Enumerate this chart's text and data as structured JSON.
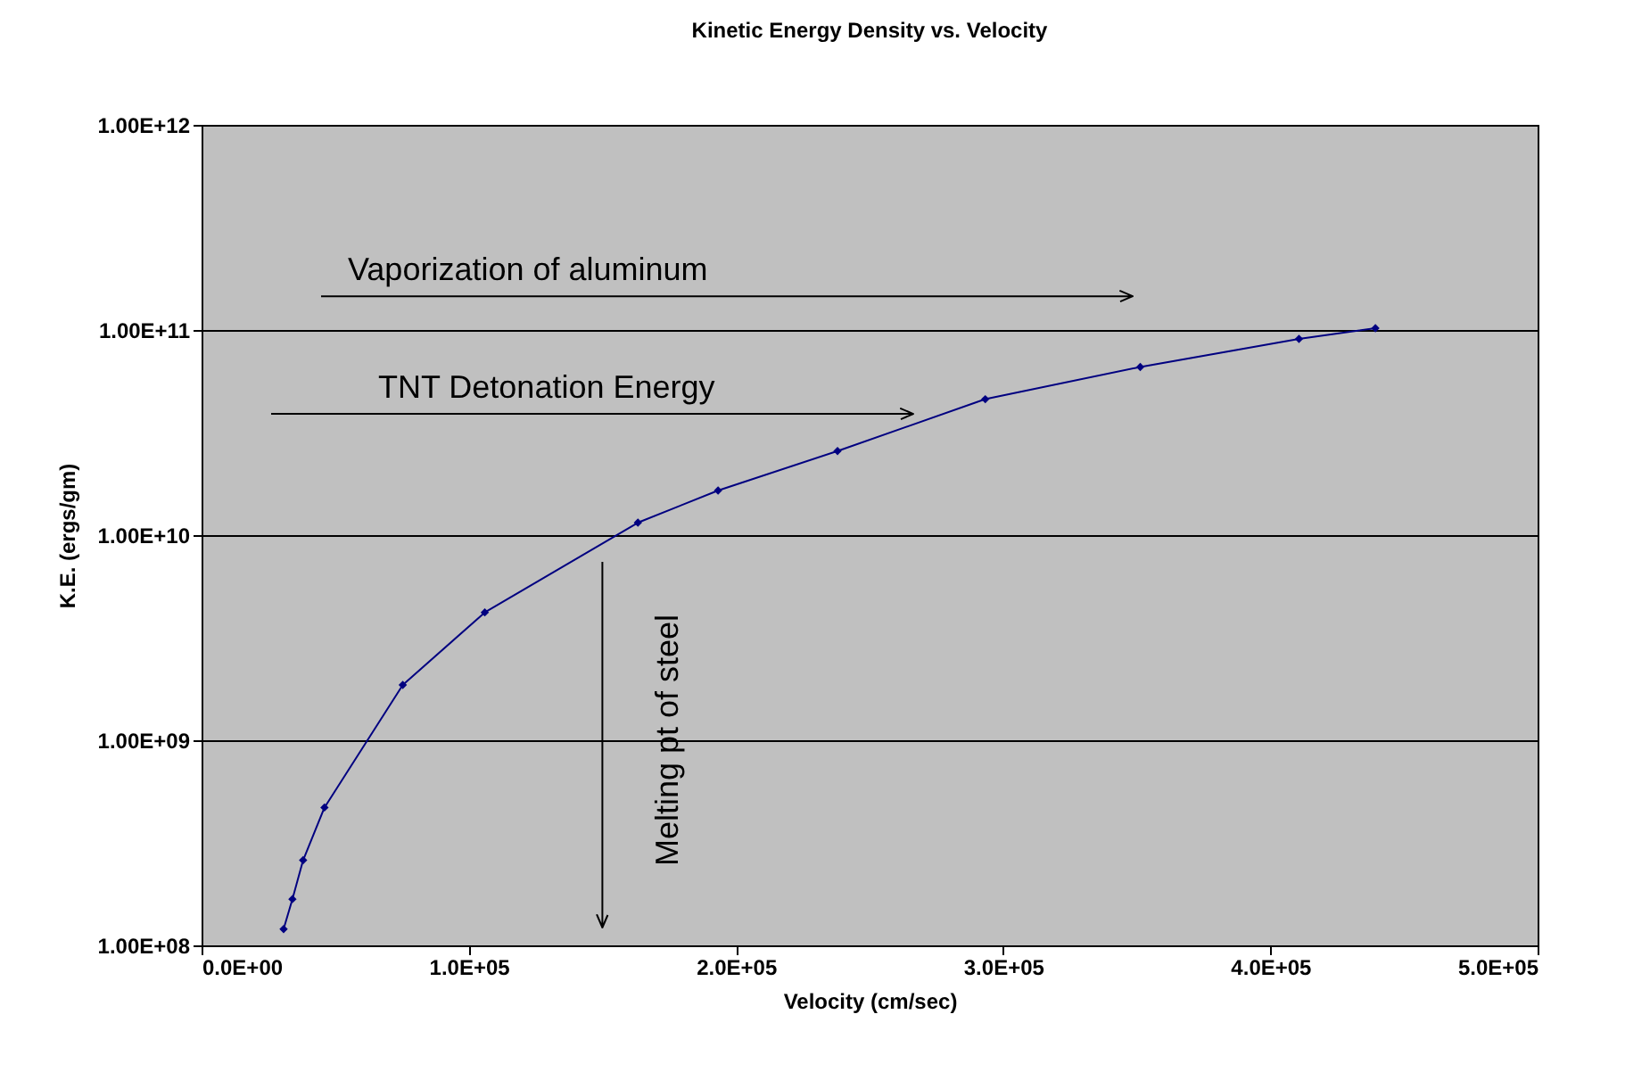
{
  "chart_data": {
    "type": "line",
    "title": "Kinetic Energy Density  vs. Velocity",
    "xlabel": "Velocity (cm/sec)",
    "ylabel": "K.E. (ergs/gm)",
    "x": [
      30700,
      34000,
      38000,
      46000,
      75300,
      106000,
      163300,
      193300,
      238000,
      293300,
      351300,
      410700,
      439300
    ],
    "series": [
      {
        "color": "#000080",
        "values": [
          120000000.0,
          168000000.0,
          260000000.0,
          470000000.0,
          1860000000.0,
          4200000000.0,
          11500000000.0,
          16500000000.0,
          25700000000.0,
          46000000000.0,
          66000000000.0,
          90500000000.0,
          102000000000.0
        ]
      }
    ],
    "xlim": [
      0,
      500000
    ],
    "xticks": [
      {
        "value": 0,
        "label": "0.0E+00"
      },
      {
        "value": 100000,
        "label": "1.0E+05"
      },
      {
        "value": 200000,
        "label": "2.0E+05"
      },
      {
        "value": 300000,
        "label": "3.0E+05"
      },
      {
        "value": 400000,
        "label": "4.0E+05"
      },
      {
        "value": 500000,
        "label": "5.0E+05"
      }
    ],
    "ylim": [
      100000000.0,
      1000000000000.0
    ],
    "yticks": [
      {
        "value": 100000000.0,
        "label": "1.00E+08"
      },
      {
        "value": 1000000000.0,
        "label": "1.00E+09"
      },
      {
        "value": 10000000000.0,
        "label": "1.00E+10"
      },
      {
        "value": 100000000000.0,
        "label": "1.00E+11"
      },
      {
        "value": 1000000000000.0,
        "label": "1.00E+12"
      }
    ],
    "log": "y",
    "grid": "y",
    "marker": "diamond",
    "line_style": "solid",
    "ref_lines": [
      {
        "axis": "y",
        "value": 146000000000.0,
        "label": "Vaporization of aluminum",
        "color": "#000000"
      },
      {
        "axis": "y",
        "value": 39000000000.0,
        "label": "TNT Detonation Energy",
        "color": "#000000"
      },
      {
        "axis": "x",
        "value": 150000,
        "label": "Melting pt of steel",
        "color": "#000000"
      }
    ]
  }
}
